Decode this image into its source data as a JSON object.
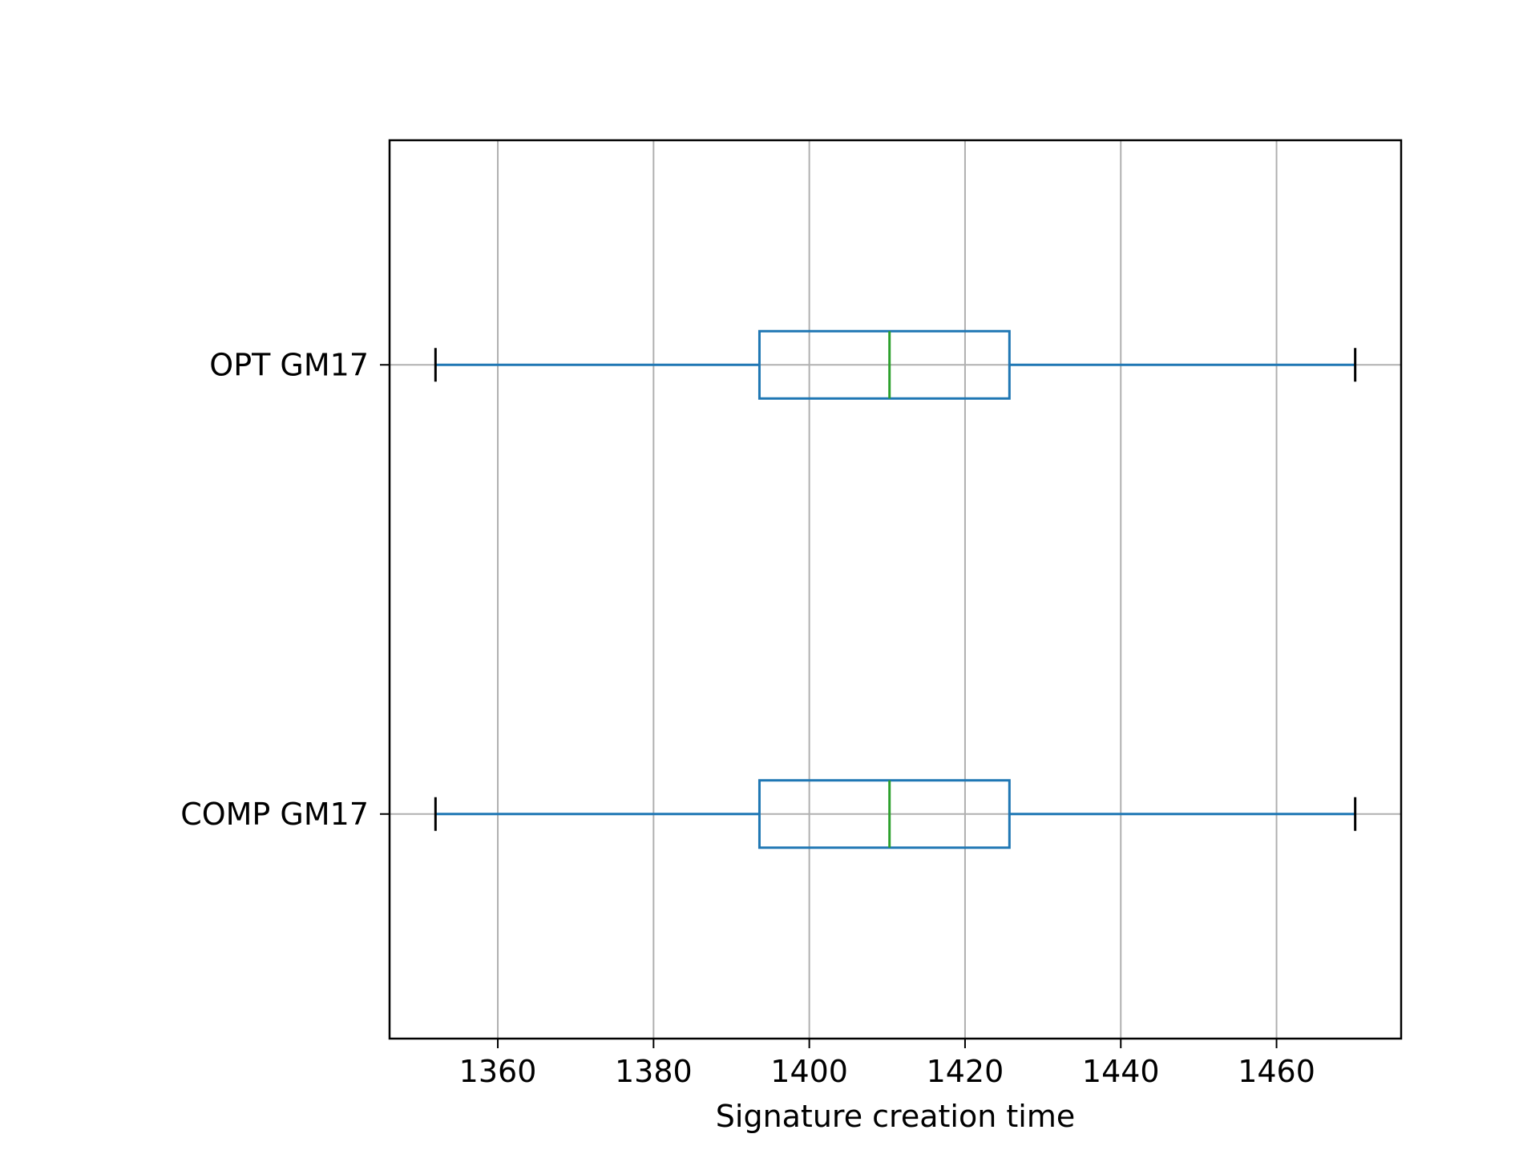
{
  "chart_data": {
    "type": "boxplot",
    "orientation": "horizontal",
    "title": "",
    "xlabel": "Signature creation time",
    "ylabel": "",
    "xlim": [
      1346.1,
      1476.0
    ],
    "xticks": [
      1360,
      1380,
      1400,
      1420,
      1440,
      1460
    ],
    "grid": true,
    "categories": [
      "COMP GM17",
      "OPT GM17"
    ],
    "boxes": [
      {
        "label": "COMP GM17",
        "whisker_low": 1352.0,
        "q1": 1393.6,
        "median": 1410.3,
        "q3": 1425.7,
        "whisker_high": 1470.1
      },
      {
        "label": "OPT GM17",
        "whisker_low": 1352.0,
        "q1": 1393.6,
        "median": 1410.3,
        "q3": 1425.7,
        "whisker_high": 1470.1
      }
    ],
    "colors": {
      "box": "#1f77b4",
      "median": "#2ca02c",
      "cap": "#000000",
      "grid": "#b0b0b0",
      "frame": "#000000"
    }
  }
}
